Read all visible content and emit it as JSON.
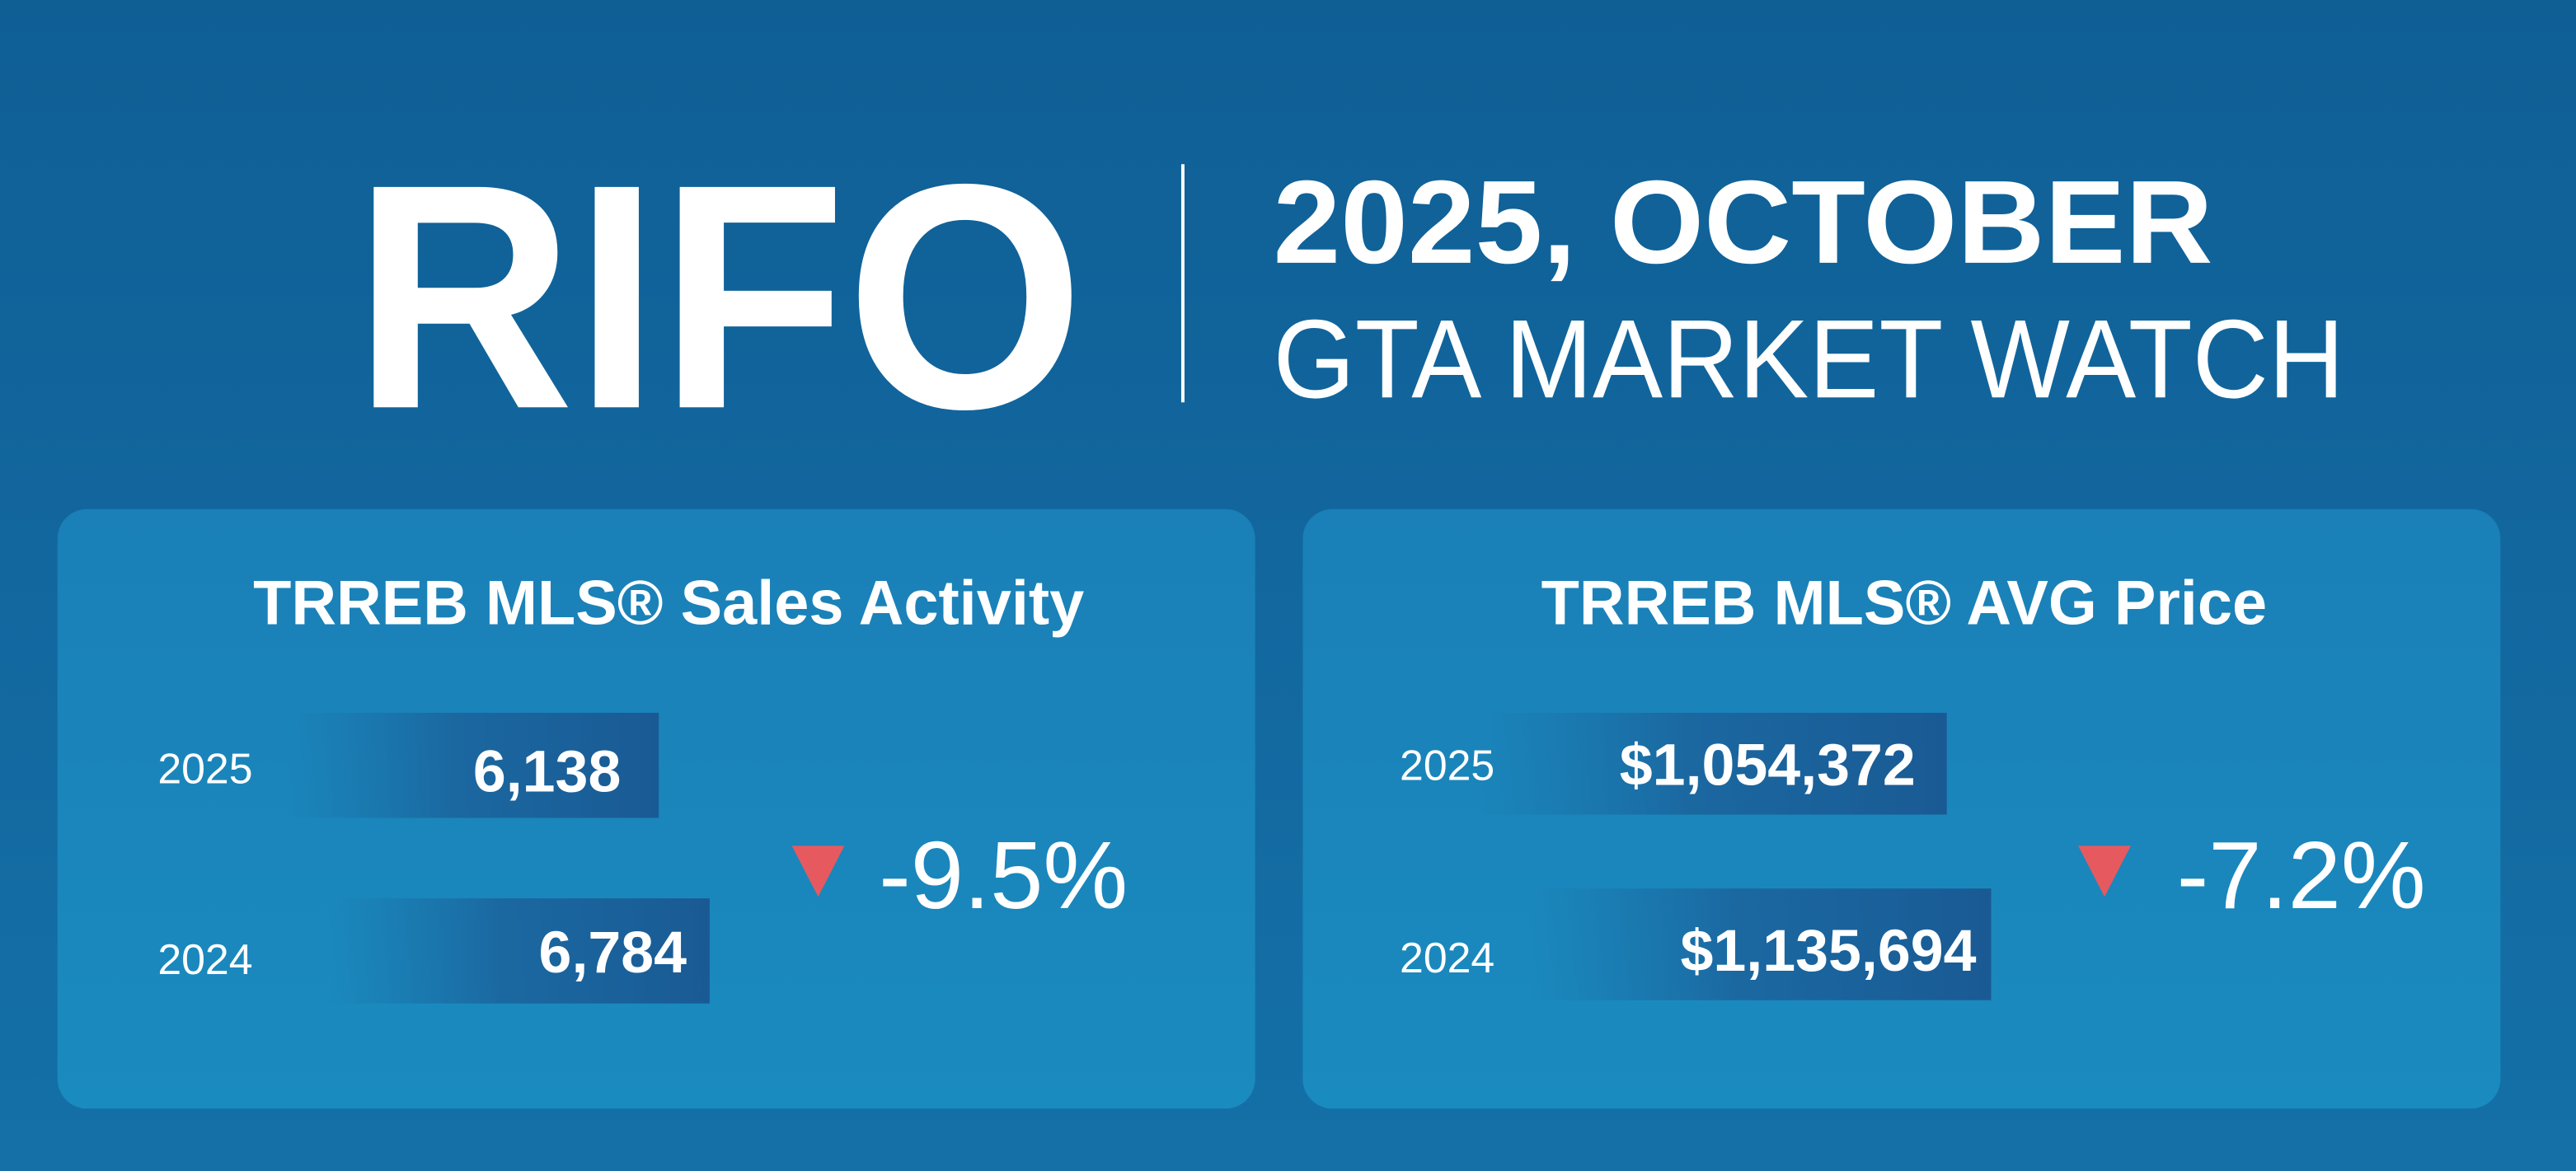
{
  "header": {
    "logo": "RIFO",
    "title": "2025, OCTOBER",
    "subtitle": "GTA MARKET WATCH"
  },
  "panels": [
    {
      "title": "TRREB MLS® Sales Activity",
      "rows": [
        {
          "year": "2025",
          "value": "6,138"
        },
        {
          "year": "2024",
          "value": "6,784"
        }
      ],
      "change": "-9.5%"
    },
    {
      "title": "TRREB MLS® AVG Price",
      "rows": [
        {
          "year": "2025",
          "value": "$1,054,372"
        },
        {
          "year": "2024",
          "value": "$1,135,694"
        }
      ],
      "change": "-7.2%"
    }
  ]
}
